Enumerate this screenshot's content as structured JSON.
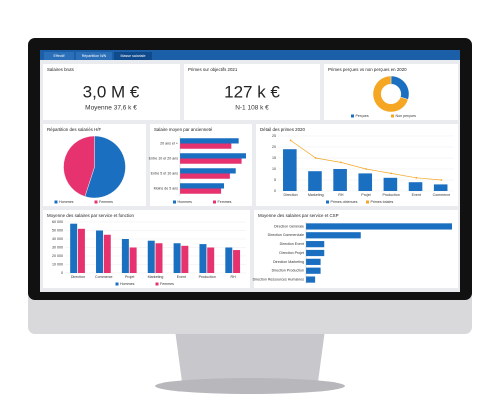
{
  "tabs": [
    "Effectif",
    "Répartition N/N",
    "Masse salariale"
  ],
  "kpis": [
    {
      "title": "Salaires bruts",
      "value": "3,0 M €",
      "subtitle": "Moyenne 37,6 k €"
    },
    {
      "title": "Primes sur objectifs 2021",
      "value": "127 k €",
      "subtitle": "N-1 108 k €"
    }
  ],
  "chart_data": [
    {
      "type": "donut",
      "title": "Primes perçues vs non perçues en 2020",
      "categories": [
        "Perçues",
        "Non perçues"
      ],
      "values": [
        30,
        70
      ],
      "colors": [
        "#1a6fc0",
        "#f5a623"
      ]
    },
    {
      "type": "pie",
      "title": "Répartition des salariés H/F",
      "categories": [
        "Hommes",
        "Femmes"
      ],
      "values": [
        55,
        45
      ],
      "colors": [
        "#1a6fc0",
        "#e6336f"
      ]
    },
    {
      "type": "hbar",
      "title": "Salaire moyen par ancienneté",
      "categories": [
        "20 ans et +",
        "Entre 10 et 20 ans",
        "Entre 5 et 10 ans",
        "Moins de 5 ans"
      ],
      "series": [
        {
          "name": "Hommes",
          "color": "#1a6fc0",
          "values": [
            40,
            45,
            38,
            30
          ]
        },
        {
          "name": "Femmes",
          "color": "#e6336f",
          "values": [
            35,
            42,
            34,
            28
          ]
        }
      ]
    },
    {
      "type": "combo",
      "title": "Détail des primes 2020",
      "categories": [
        "Direction",
        "Marketing",
        "RH",
        "Projet",
        "Production",
        "Event",
        "Commerce"
      ],
      "series": [
        {
          "name": "Primes obtenues",
          "kind": "bar",
          "color": "#1a6fc0",
          "values": [
            19,
            9,
            10,
            8,
            6,
            4,
            3
          ]
        },
        {
          "name": "Primes totales",
          "kind": "line",
          "color": "#f5a623",
          "values": [
            23,
            15,
            13,
            10,
            8,
            6,
            5
          ]
        }
      ],
      "ylim": [
        0,
        25
      ],
      "yticks": [
        0,
        5,
        10,
        15,
        20,
        25
      ],
      "grid": true
    },
    {
      "type": "bar",
      "title": "Moyenne des salaires par service et fonction",
      "categories": [
        "Direction",
        "Commerce",
        "Projet",
        "Marketing",
        "Event",
        "Production",
        "RH"
      ],
      "series": [
        {
          "name": "Hommes",
          "kind": "bar",
          "color": "#1a6fc0",
          "values": [
            58000,
            50000,
            40000,
            38000,
            35000,
            34000,
            30000
          ]
        },
        {
          "name": "Femmes",
          "kind": "bar",
          "color": "#e6336f",
          "values": [
            52000,
            45000,
            30000,
            35000,
            32000,
            30000,
            27000
          ]
        }
      ],
      "ylim": [
        0,
        60000
      ],
      "yticks": [
        0,
        {
          "value": 10000,
          "label": "10 000"
        },
        {
          "value": 20000,
          "label": "20 000"
        },
        {
          "value": 30000,
          "label": "30 000"
        },
        {
          "value": 40000,
          "label": "40 000"
        },
        {
          "value": 50000,
          "label": "50 000"
        },
        {
          "value": 60000,
          "label": "60 000"
        }
      ],
      "grid": true
    },
    {
      "type": "hbar",
      "title": "Moyenne des salaires par service et CSP",
      "categories": [
        "Direction Générale",
        "Direction Commerciale",
        "Direction Event",
        "Direction Projet",
        "Direction Marketing",
        "Direction Production",
        "Direction Ressources Humaines"
      ],
      "series": [
        {
          "name": null,
          "color": "#1a6fc0",
          "values": [
            80,
            30,
            10,
            10,
            8,
            8,
            5
          ]
        }
      ]
    }
  ]
}
